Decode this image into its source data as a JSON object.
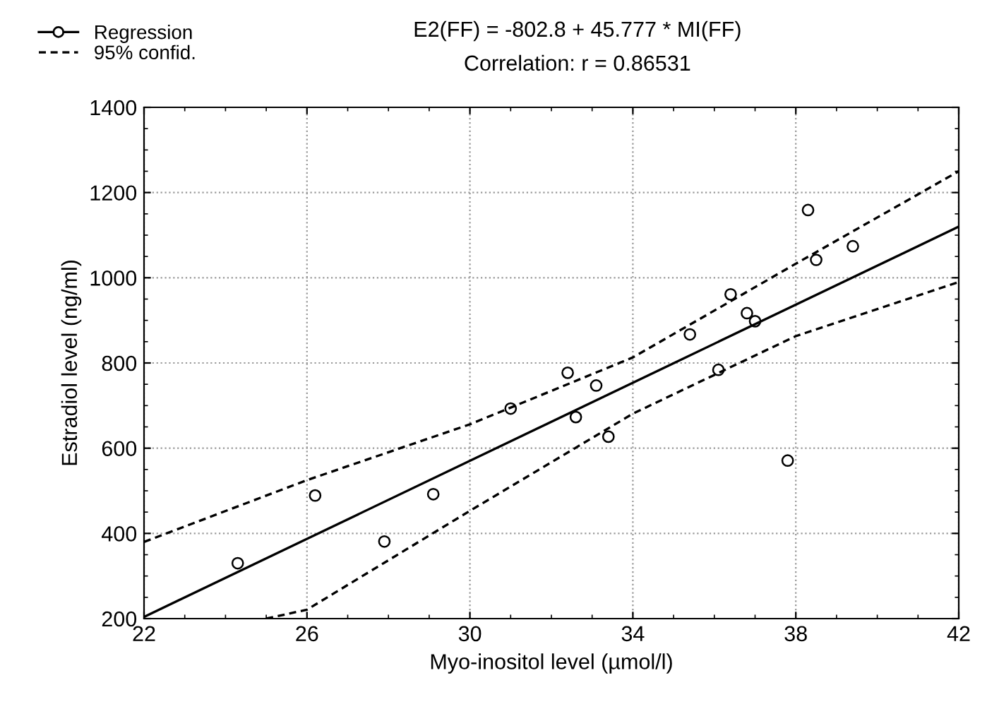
{
  "chart_data": {
    "type": "scatter",
    "xlabel": "Myo-inositol level (µmol/l)",
    "ylabel": "Estradiol level (ng/ml)",
    "annotations": [
      "E2(FF) = -802.8 + 45.777 * MI(FF)",
      "Correlation: r = 0.86531"
    ],
    "xlim": [
      22,
      42
    ],
    "xticks": [
      22,
      26,
      30,
      34,
      38,
      42
    ],
    "ylim": [
      200,
      1400
    ],
    "yticks": [
      200,
      400,
      600,
      800,
      1000,
      1200,
      1400
    ],
    "grid": true,
    "legend": "top left",
    "series": [
      {
        "color": "#000000",
        "marker": "circle",
        "x": [
          24.3,
          26.2,
          27.9,
          29.1,
          31.0,
          32.4,
          33.1,
          32.6,
          33.4,
          35.4,
          36.1,
          36.4,
          36.8,
          37.0,
          37.8,
          38.3,
          38.5,
          39.4
        ],
        "values": [
          330,
          489,
          381,
          492,
          693,
          777,
          747,
          673,
          627,
          867,
          784,
          961,
          917,
          898,
          571,
          1159,
          1042,
          1074
        ]
      },
      {
        "type": "line",
        "name": "Regression",
        "color": "#000000",
        "line_style": "solid",
        "marker": "none",
        "x": [
          22,
          42
        ],
        "values": [
          204,
          1120
        ]
      },
      {
        "type": "line",
        "name": "95% confid.",
        "color": "#000000",
        "line_style": "dashed",
        "marker": "none",
        "x": [
          22,
          26,
          30,
          34,
          38,
          42
        ],
        "values": [
          380,
          525,
          656,
          813,
          1033,
          1250
        ]
      },
      {
        "type": "line",
        "color": "#000000",
        "line_style": "dashed",
        "marker": "none",
        "x": [
          25,
          26,
          30,
          34,
          38,
          42
        ],
        "values": [
          200,
          221,
          453,
          681,
          863,
          990
        ]
      }
    ]
  }
}
